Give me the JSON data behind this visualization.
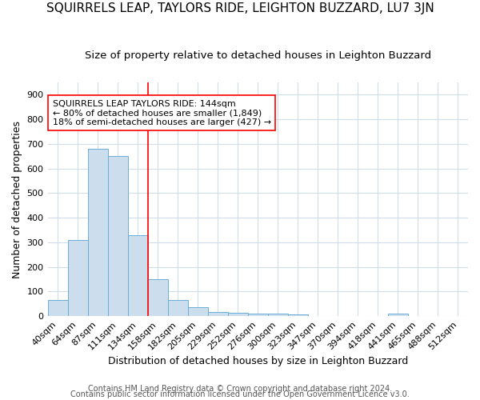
{
  "title": "SQUIRRELS LEAP, TAYLORS RIDE, LEIGHTON BUZZARD, LU7 3JN",
  "subtitle": "Size of property relative to detached houses in Leighton Buzzard",
  "xlabel": "Distribution of detached houses by size in Leighton Buzzard",
  "ylabel": "Number of detached properties",
  "bar_labels": [
    "40sqm",
    "64sqm",
    "87sqm",
    "111sqm",
    "134sqm",
    "158sqm",
    "182sqm",
    "205sqm",
    "229sqm",
    "252sqm",
    "276sqm",
    "300sqm",
    "323sqm",
    "347sqm",
    "370sqm",
    "394sqm",
    "418sqm",
    "441sqm",
    "465sqm",
    "488sqm",
    "512sqm"
  ],
  "bar_values": [
    65,
    310,
    680,
    650,
    330,
    150,
    65,
    35,
    15,
    12,
    10,
    10,
    8,
    0,
    0,
    0,
    0,
    10,
    0,
    0,
    0
  ],
  "bar_color": "#ccdded",
  "bar_edge_color": "#6aaed6",
  "red_line_x": 5.0,
  "ylim": [
    0,
    950
  ],
  "yticks": [
    0,
    100,
    200,
    300,
    400,
    500,
    600,
    700,
    800,
    900
  ],
  "annotation_text": "SQUIRRELS LEAP TAYLORS RIDE: 144sqm\n← 80% of detached houses are smaller (1,849)\n18% of semi-detached houses are larger (427) →",
  "footer_text1": "Contains HM Land Registry data © Crown copyright and database right 2024.",
  "footer_text2": "Contains public sector information licensed under the Open Government Licence v3.0.",
  "title_fontsize": 11,
  "subtitle_fontsize": 9.5,
  "axis_label_fontsize": 9,
  "tick_fontsize": 8,
  "annotation_fontsize": 8,
  "footer_fontsize": 7,
  "background_color": "#ffffff",
  "plot_bg_color": "#ffffff",
  "grid_color": "#d0dce8"
}
